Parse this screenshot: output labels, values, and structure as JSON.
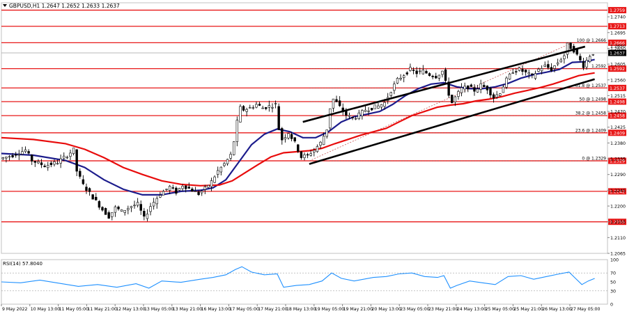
{
  "header": {
    "symbol_text": "GBPUSD,H1  1.2647 1.2652 1.2633 1.2637"
  },
  "rsi_panel": {
    "label": "RSI(14) 57.8040"
  },
  "chart_data": [
    {
      "type": "candlestick",
      "symbol": "GBPUSD",
      "timeframe": "H1",
      "ohlc_header": {
        "open": 1.2647,
        "high": 1.2652,
        "low": 1.2633,
        "close": 1.2637
      },
      "ylim": [
        1.2065,
        1.278
      ],
      "price_ticks": [
        1.274,
        1.2695,
        1.265,
        1.2605,
        1.256,
        1.2515,
        1.247,
        1.2425,
        1.238,
        1.2335,
        1.229,
        1.2245,
        1.22,
        1.2155,
        1.211,
        1.2065
      ],
      "x_labels": [
        "9 May 2022",
        "10 May 13:00",
        "11 May 05:00",
        "11 May 21:00",
        "12 May 13:00",
        "13 May 05:00",
        "13 May 21:00",
        "16 May 13:00",
        "17 May 05:00",
        "17 May 21:00",
        "18 May 13:00",
        "19 May 05:00",
        "19 May 21:00",
        "20 May 13:00",
        "23 May 05:00",
        "23 May 21:00",
        "24 May 13:00",
        "25 May 05:00",
        "25 May 21:00",
        "26 May 13:00",
        "27 May 05:00"
      ],
      "horizontal_levels": [
        {
          "price": 1.2759,
          "label": "1.2759"
        },
        {
          "price": 1.2713,
          "label": "1.2713"
        },
        {
          "price": 1.2666,
          "label": "1.2666"
        },
        {
          "price": 1.2592,
          "label": "1.2592"
        },
        {
          "price": 1.2537,
          "label": "1.2537"
        },
        {
          "price": 1.2498,
          "label": "1.2498"
        },
        {
          "price": 1.2458,
          "label": "1.2458"
        },
        {
          "price": 1.2409,
          "label": "1.2409"
        },
        {
          "price": 1.2329,
          "label": "1.2329"
        },
        {
          "price": 1.2242,
          "label": "1.2242"
        },
        {
          "price": 1.2155,
          "label": "1.2155"
        }
      ],
      "current_price": {
        "price": 1.2637,
        "label": "1.2637"
      },
      "fibonacci_levels": [
        {
          "label": "100 @ 1.2666",
          "price": 1.2666
        },
        {
          "label": "1.2592",
          "price": 1.2592
        },
        {
          "label": "61.8 @ 1.2537",
          "price": 1.2537
        },
        {
          "label": "50 @ 1.2498",
          "price": 1.2498
        },
        {
          "label": "38.2 @ 1.2458",
          "price": 1.2458
        },
        {
          "label": "23.6 @ 1.2409",
          "price": 1.2409
        },
        {
          "label": "0 @ 1.2329",
          "price": 1.2329
        }
      ],
      "extra_price_labels": [
        {
          "price": 1.265,
          "label": "1.2650"
        }
      ],
      "price_path": [
        [
          0,
          1.2335
        ],
        [
          4,
          1.2345
        ],
        [
          8,
          1.236
        ],
        [
          10,
          1.233
        ],
        [
          14,
          1.2315
        ],
        [
          18,
          1.2325
        ],
        [
          21,
          1.2345
        ],
        [
          23,
          1.236
        ],
        [
          24,
          1.23
        ],
        [
          26,
          1.226
        ],
        [
          29,
          1.2225
        ],
        [
          32,
          1.219
        ],
        [
          34,
          1.217
        ],
        [
          36,
          1.2195
        ],
        [
          38,
          1.2185
        ],
        [
          41,
          1.22
        ],
        [
          43,
          1.2205
        ],
        [
          45,
          1.2165
        ],
        [
          47,
          1.22
        ],
        [
          50,
          1.2235
        ],
        [
          53,
          1.2255
        ],
        [
          55,
          1.224
        ],
        [
          57,
          1.226
        ],
        [
          60,
          1.2245
        ],
        [
          62,
          1.2235
        ],
        [
          64,
          1.225
        ],
        [
          66,
          1.227
        ],
        [
          68,
          1.23
        ],
        [
          70,
          1.232
        ],
        [
          72,
          1.2345
        ],
        [
          73,
          1.2385
        ],
        [
          74,
          1.244
        ],
        [
          75,
          1.248
        ],
        [
          76,
          1.2475
        ],
        [
          78,
          1.248
        ],
        [
          80,
          1.249
        ],
        [
          82,
          1.248
        ],
        [
          84,
          1.2485
        ],
        [
          86,
          1.249
        ],
        [
          87,
          1.242
        ],
        [
          88,
          1.239
        ],
        [
          90,
          1.241
        ],
        [
          92,
          1.238
        ],
        [
          94,
          1.234
        ],
        [
          96,
          1.2345
        ],
        [
          98,
          1.236
        ],
        [
          100,
          1.238
        ],
        [
          102,
          1.242
        ],
        [
          103,
          1.248
        ],
        [
          104,
          1.2505
        ],
        [
          105,
          1.2495
        ],
        [
          107,
          1.247
        ],
        [
          108,
          1.246
        ],
        [
          110,
          1.245
        ],
        [
          112,
          1.246
        ],
        [
          114,
          1.2475
        ],
        [
          116,
          1.248
        ],
        [
          118,
          1.2485
        ],
        [
          120,
          1.2495
        ],
        [
          122,
          1.253
        ],
        [
          124,
          1.256
        ],
        [
          126,
          1.2575
        ],
        [
          128,
          1.259
        ],
        [
          130,
          1.258
        ],
        [
          132,
          1.2585
        ],
        [
          134,
          1.2575
        ],
        [
          136,
          1.257
        ],
        [
          138,
          1.2585
        ],
        [
          140,
          1.252
        ],
        [
          141,
          1.2495
        ],
        [
          142,
          1.251
        ],
        [
          144,
          1.2535
        ],
        [
          146,
          1.254
        ],
        [
          148,
          1.253
        ],
        [
          150,
          1.2545
        ],
        [
          152,
          1.2535
        ],
        [
          154,
          1.251
        ],
        [
          156,
          1.2525
        ],
        [
          158,
          1.256
        ],
        [
          160,
          1.2585
        ],
        [
          162,
          1.259
        ],
        [
          164,
          1.258
        ],
        [
          166,
          1.257
        ],
        [
          168,
          1.259
        ],
        [
          170,
          1.26
        ],
        [
          172,
          1.259
        ],
        [
          174,
          1.261
        ],
        [
          176,
          1.263
        ],
        [
          177,
          1.266
        ],
        [
          179,
          1.2645
        ],
        [
          181,
          1.2615
        ],
        [
          182,
          1.26
        ],
        [
          184,
          1.263
        ],
        [
          185,
          1.2637
        ]
      ],
      "moving_averages": [
        {
          "color": "#1c1c8c",
          "points": [
            [
              0,
              1.235
            ],
            [
              10,
              1.2345
            ],
            [
              20,
              1.233
            ],
            [
              26,
              1.231
            ],
            [
              32,
              1.2275
            ],
            [
              38,
              1.2248
            ],
            [
              44,
              1.2232
            ],
            [
              50,
              1.2232
            ],
            [
              56,
              1.2242
            ],
            [
              62,
              1.2245
            ],
            [
              66,
              1.2252
            ],
            [
              70,
              1.2275
            ],
            [
              74,
              1.2325
            ],
            [
              78,
              1.2375
            ],
            [
              82,
              1.2405
            ],
            [
              86,
              1.242
            ],
            [
              90,
              1.2412
            ],
            [
              94,
              1.2395
            ],
            [
              98,
              1.2395
            ],
            [
              102,
              1.2412
            ],
            [
              106,
              1.244
            ],
            [
              110,
              1.2455
            ],
            [
              114,
              1.2462
            ],
            [
              118,
              1.247
            ],
            [
              122,
              1.249
            ],
            [
              126,
              1.2515
            ],
            [
              130,
              1.2535
            ],
            [
              134,
              1.2548
            ],
            [
              138,
              1.2552
            ],
            [
              142,
              1.254
            ],
            [
              146,
              1.2535
            ],
            [
              150,
              1.2535
            ],
            [
              154,
              1.254
            ],
            [
              158,
              1.255
            ],
            [
              162,
              1.2565
            ],
            [
              166,
              1.2575
            ],
            [
              170,
              1.2582
            ],
            [
              174,
              1.259
            ],
            [
              178,
              1.261
            ],
            [
              182,
              1.2612
            ],
            [
              185,
              1.2618
            ]
          ]
        },
        {
          "color": "#e80c0c",
          "points": [
            [
              0,
              1.2395
            ],
            [
              10,
              1.239
            ],
            [
              20,
              1.2378
            ],
            [
              26,
              1.2362
            ],
            [
              32,
              1.2338
            ],
            [
              38,
              1.231
            ],
            [
              44,
              1.229
            ],
            [
              50,
              1.2272
            ],
            [
              56,
              1.2262
            ],
            [
              62,
              1.2258
            ],
            [
              68,
              1.226
            ],
            [
              72,
              1.2272
            ],
            [
              76,
              1.2295
            ],
            [
              80,
              1.2318
            ],
            [
              84,
              1.234
            ],
            [
              88,
              1.2352
            ],
            [
              92,
              1.2355
            ],
            [
              96,
              1.2358
            ],
            [
              100,
              1.2365
            ],
            [
              104,
              1.2378
            ],
            [
              108,
              1.239
            ],
            [
              112,
              1.2402
            ],
            [
              116,
              1.2412
            ],
            [
              120,
              1.2422
            ],
            [
              124,
              1.244
            ],
            [
              128,
              1.2458
            ],
            [
              132,
              1.247
            ],
            [
              136,
              1.2482
            ],
            [
              140,
              1.2488
            ],
            [
              144,
              1.2492
            ],
            [
              148,
              1.25
            ],
            [
              152,
              1.2505
            ],
            [
              156,
              1.2512
            ],
            [
              160,
              1.2522
            ],
            [
              164,
              1.253
            ],
            [
              168,
              1.2538
            ],
            [
              172,
              1.2548
            ],
            [
              176,
              1.256
            ],
            [
              180,
              1.2572
            ],
            [
              185,
              1.258
            ]
          ]
        }
      ],
      "trend_lines": [
        {
          "from": [
            94,
            1.244
          ],
          "to": [
            182,
            1.2655
          ]
        },
        {
          "from": [
            96,
            1.232
          ],
          "to": [
            185,
            1.2562
          ]
        }
      ],
      "fib_diagonal": {
        "from": [
          96,
          1.2329
        ],
        "to": [
          178,
          1.2666
        ]
      },
      "rsi": {
        "period": 14,
        "value": 57.804,
        "ylim": [
          0,
          100
        ],
        "ticks": [
          100,
          70,
          50,
          30,
          0
        ],
        "levels": [
          70,
          30
        ],
        "color": "#1e90ff",
        "values": [
          [
            0,
            50
          ],
          [
            6,
            48
          ],
          [
            12,
            54
          ],
          [
            18,
            47
          ],
          [
            24,
            40
          ],
          [
            30,
            44
          ],
          [
            36,
            38
          ],
          [
            42,
            46
          ],
          [
            46,
            36
          ],
          [
            50,
            52
          ],
          [
            56,
            49
          ],
          [
            62,
            56
          ],
          [
            66,
            60
          ],
          [
            70,
            66
          ],
          [
            73,
            78
          ],
          [
            75,
            84
          ],
          [
            78,
            72
          ],
          [
            82,
            66
          ],
          [
            86,
            68
          ],
          [
            88,
            38
          ],
          [
            92,
            42
          ],
          [
            96,
            44
          ],
          [
            100,
            52
          ],
          [
            103,
            70
          ],
          [
            106,
            58
          ],
          [
            110,
            52
          ],
          [
            116,
            60
          ],
          [
            120,
            62
          ],
          [
            124,
            68
          ],
          [
            128,
            70
          ],
          [
            132,
            62
          ],
          [
            136,
            60
          ],
          [
            138,
            64
          ],
          [
            140,
            36
          ],
          [
            142,
            42
          ],
          [
            146,
            52
          ],
          [
            150,
            48
          ],
          [
            154,
            44
          ],
          [
            158,
            62
          ],
          [
            162,
            64
          ],
          [
            166,
            56
          ],
          [
            170,
            62
          ],
          [
            174,
            68
          ],
          [
            177,
            72
          ],
          [
            179,
            58
          ],
          [
            181,
            44
          ],
          [
            183,
            52
          ],
          [
            185,
            57.8
          ]
        ]
      }
    }
  ]
}
